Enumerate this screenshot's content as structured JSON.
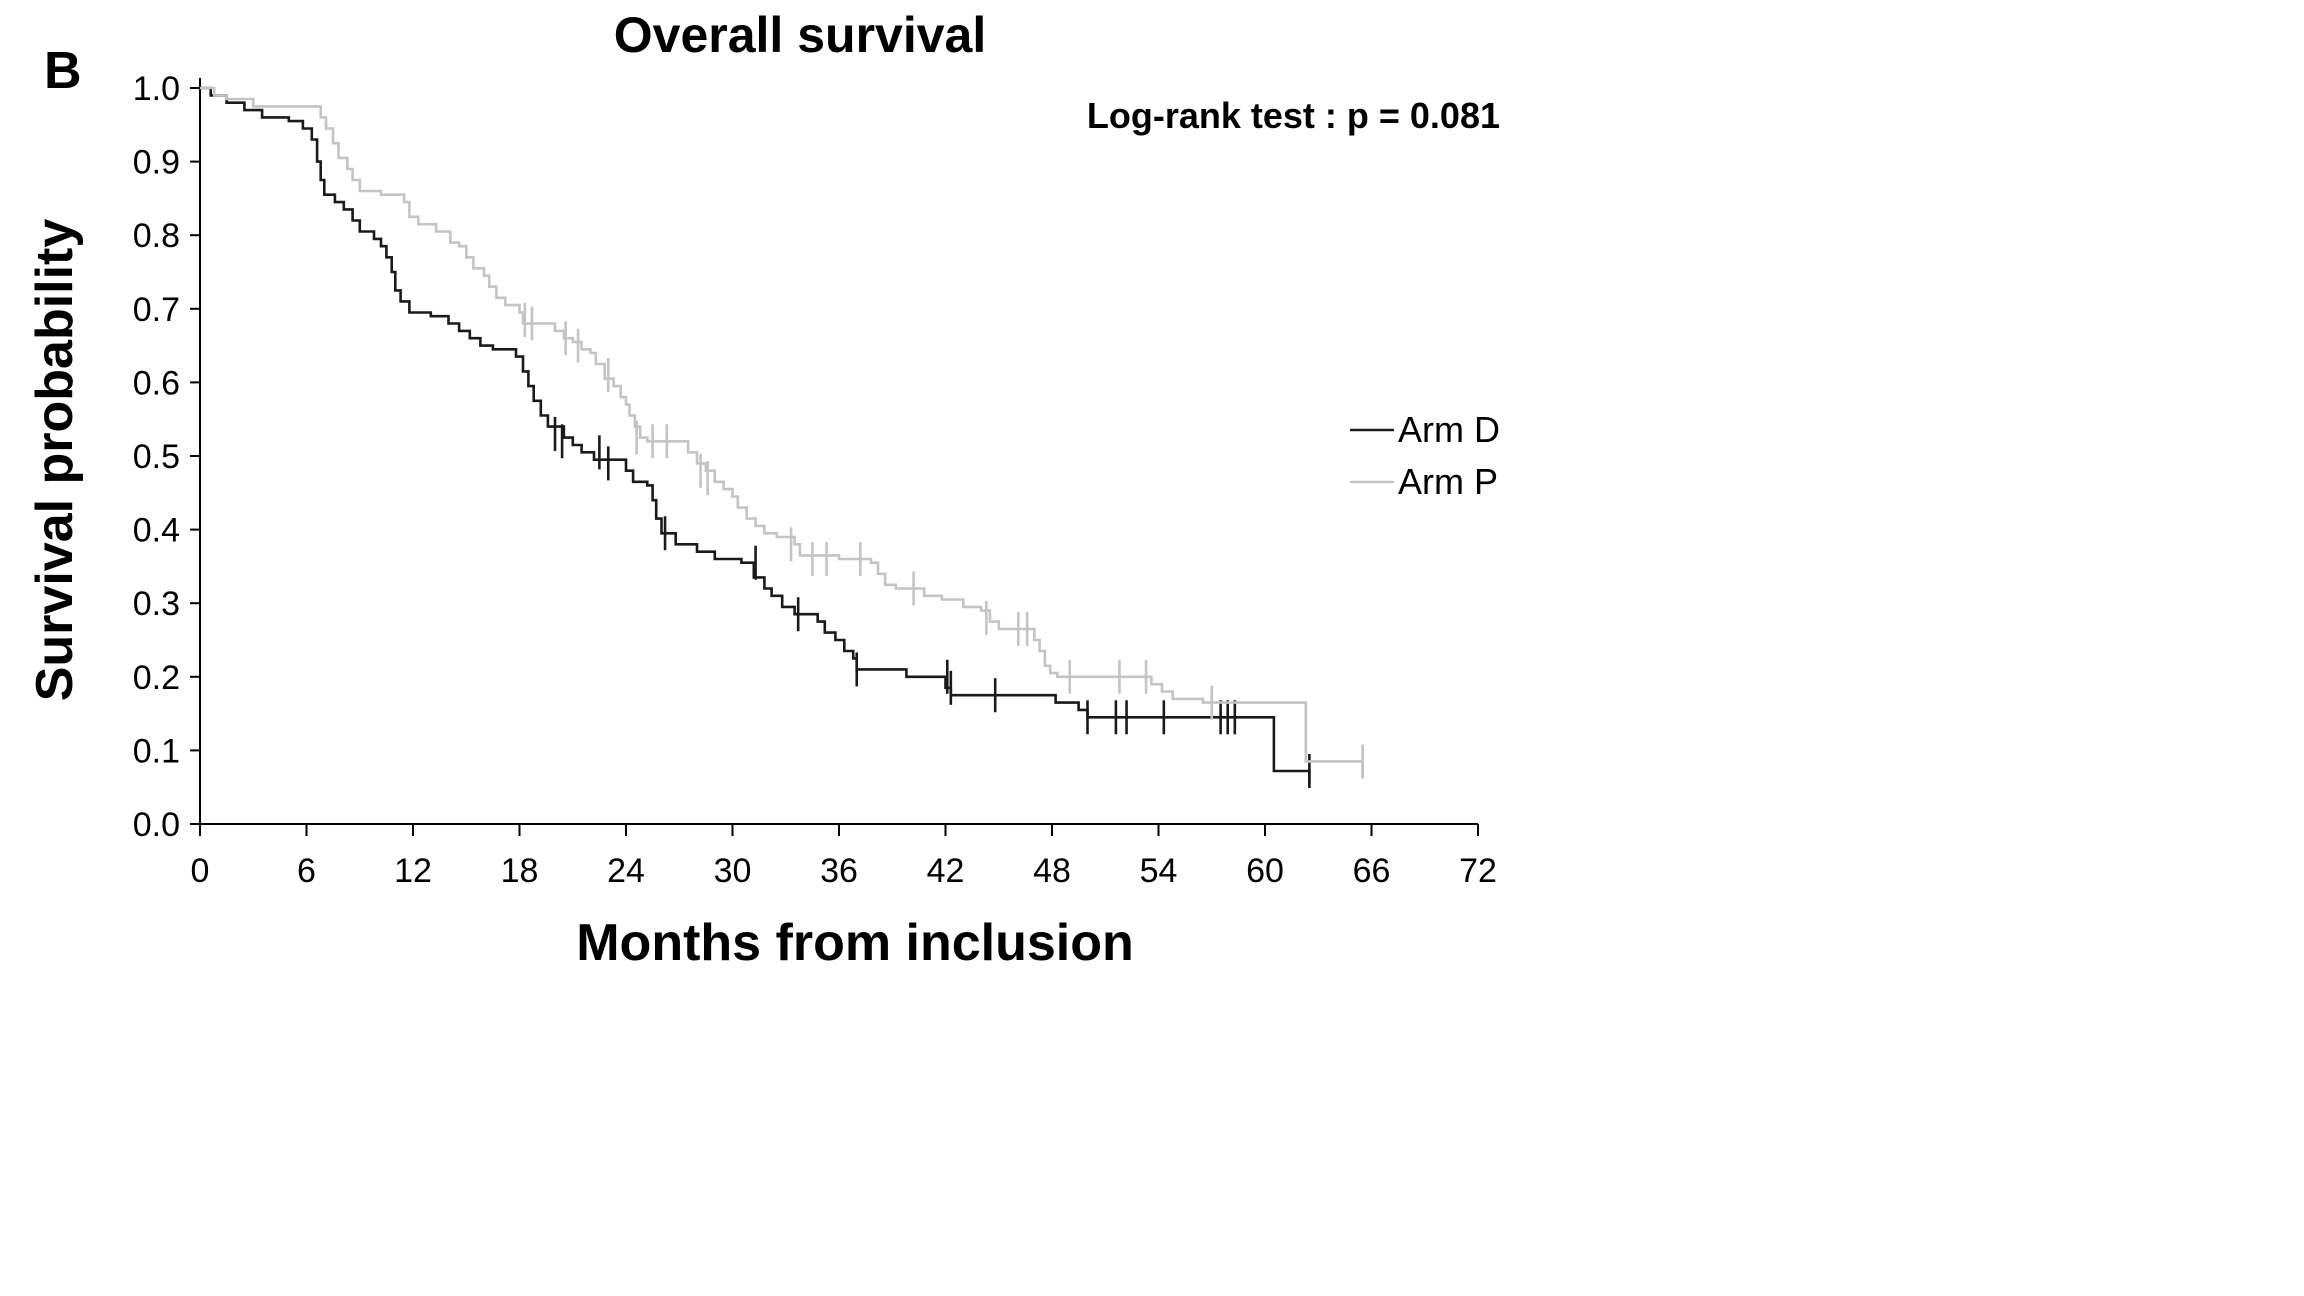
{
  "panel_label": "B",
  "chart_data": {
    "type": "line",
    "subtype": "kaplan-meier",
    "title": "Overall survival",
    "xlabel": "Months from inclusion",
    "ylabel": "Survival probability",
    "xlim": [
      0,
      72
    ],
    "ylim": [
      0,
      1
    ],
    "x_ticks": [
      0,
      6,
      12,
      18,
      24,
      30,
      36,
      42,
      48,
      54,
      60,
      66,
      72
    ],
    "y_ticks": [
      "0.0",
      "0.1",
      "0.2",
      "0.3",
      "0.4",
      "0.5",
      "0.6",
      "0.7",
      "0.8",
      "0.9",
      "1.0"
    ],
    "annotation": "Log-rank test : p = 0.081",
    "grid": false,
    "legend_position": "right",
    "series": [
      {
        "name": "Arm D",
        "color": "#1a1a1a",
        "points": [
          [
            0,
            1.0
          ],
          [
            0.6,
            0.99
          ],
          [
            1.5,
            0.98
          ],
          [
            2.5,
            0.97
          ],
          [
            3.5,
            0.96
          ],
          [
            5,
            0.955
          ],
          [
            5.8,
            0.945
          ],
          [
            6.3,
            0.93
          ],
          [
            6.6,
            0.9
          ],
          [
            6.8,
            0.875
          ],
          [
            7.0,
            0.855
          ],
          [
            7.6,
            0.845
          ],
          [
            8.1,
            0.835
          ],
          [
            8.6,
            0.82
          ],
          [
            9.0,
            0.805
          ],
          [
            9.8,
            0.795
          ],
          [
            10.2,
            0.785
          ],
          [
            10.5,
            0.77
          ],
          [
            10.8,
            0.75
          ],
          [
            11.0,
            0.725
          ],
          [
            11.3,
            0.71
          ],
          [
            11.8,
            0.695
          ],
          [
            13,
            0.69
          ],
          [
            14,
            0.68
          ],
          [
            14.6,
            0.67
          ],
          [
            15.2,
            0.66
          ],
          [
            15.8,
            0.65
          ],
          [
            16.5,
            0.645
          ],
          [
            17.8,
            0.635
          ],
          [
            18.2,
            0.615
          ],
          [
            18.5,
            0.595
          ],
          [
            18.8,
            0.575
          ],
          [
            19.2,
            0.555
          ],
          [
            19.6,
            0.54
          ],
          [
            20.5,
            0.525
          ],
          [
            21.0,
            0.515
          ],
          [
            21.5,
            0.505
          ],
          [
            22.2,
            0.495
          ],
          [
            24.0,
            0.48
          ],
          [
            24.4,
            0.465
          ],
          [
            25.2,
            0.46
          ],
          [
            25.5,
            0.44
          ],
          [
            25.7,
            0.415
          ],
          [
            26.0,
            0.395
          ],
          [
            26.8,
            0.38
          ],
          [
            28.0,
            0.37
          ],
          [
            29.0,
            0.36
          ],
          [
            30.5,
            0.355
          ],
          [
            31.2,
            0.335
          ],
          [
            31.8,
            0.32
          ],
          [
            32.2,
            0.31
          ],
          [
            32.8,
            0.295
          ],
          [
            33.5,
            0.285
          ],
          [
            34.8,
            0.275
          ],
          [
            35.2,
            0.26
          ],
          [
            35.8,
            0.25
          ],
          [
            36.3,
            0.235
          ],
          [
            36.8,
            0.225
          ],
          [
            37.0,
            0.21
          ],
          [
            39,
            0.21
          ],
          [
            39.8,
            0.2
          ],
          [
            41.5,
            0.2
          ],
          [
            42.0,
            0.185
          ],
          [
            42.3,
            0.175
          ],
          [
            48.2,
            0.165
          ],
          [
            49.5,
            0.155
          ],
          [
            50.0,
            0.145
          ],
          [
            60.5,
            0.145
          ],
          [
            60.5,
            0.072
          ],
          [
            62.5,
            0.072
          ],
          [
            62.5,
            0.055
          ]
        ],
        "censored": [
          [
            20.0,
            0.53
          ],
          [
            20.4,
            0.52
          ],
          [
            22.5,
            0.505
          ],
          [
            23.0,
            0.49
          ],
          [
            26.2,
            0.395
          ],
          [
            31.3,
            0.355
          ],
          [
            33.7,
            0.285
          ],
          [
            37.0,
            0.21
          ],
          [
            42.1,
            0.2
          ],
          [
            42.3,
            0.185
          ],
          [
            44.8,
            0.175
          ],
          [
            50.0,
            0.145
          ],
          [
            51.6,
            0.145
          ],
          [
            52.2,
            0.145
          ],
          [
            54.3,
            0.145
          ],
          [
            57.5,
            0.145
          ],
          [
            57.9,
            0.145
          ],
          [
            58.3,
            0.145
          ],
          [
            62.5,
            0.072
          ]
        ]
      },
      {
        "name": "Arm P",
        "color": "#c4c4c4",
        "points": [
          [
            0,
            1.0
          ],
          [
            0.8,
            0.99
          ],
          [
            1.5,
            0.985
          ],
          [
            3.0,
            0.975
          ],
          [
            6.2,
            0.975
          ],
          [
            6.8,
            0.96
          ],
          [
            7.1,
            0.945
          ],
          [
            7.5,
            0.925
          ],
          [
            7.8,
            0.905
          ],
          [
            8.3,
            0.89
          ],
          [
            8.6,
            0.875
          ],
          [
            9.0,
            0.86
          ],
          [
            10.2,
            0.855
          ],
          [
            11.5,
            0.845
          ],
          [
            11.8,
            0.825
          ],
          [
            12.3,
            0.815
          ],
          [
            13.3,
            0.805
          ],
          [
            14.1,
            0.79
          ],
          [
            14.6,
            0.785
          ],
          [
            15.0,
            0.77
          ],
          [
            15.4,
            0.755
          ],
          [
            16.0,
            0.745
          ],
          [
            16.3,
            0.73
          ],
          [
            16.7,
            0.715
          ],
          [
            17.2,
            0.705
          ],
          [
            18.0,
            0.695
          ],
          [
            18.2,
            0.68
          ],
          [
            19.5,
            0.68
          ],
          [
            20.0,
            0.67
          ],
          [
            20.5,
            0.66
          ],
          [
            21.0,
            0.655
          ],
          [
            21.5,
            0.645
          ],
          [
            22.0,
            0.64
          ],
          [
            22.3,
            0.625
          ],
          [
            22.8,
            0.605
          ],
          [
            23.3,
            0.595
          ],
          [
            23.7,
            0.58
          ],
          [
            24.0,
            0.57
          ],
          [
            24.2,
            0.555
          ],
          [
            24.5,
            0.54
          ],
          [
            24.8,
            0.525
          ],
          [
            25.2,
            0.52
          ],
          [
            27.0,
            0.52
          ],
          [
            27.5,
            0.505
          ],
          [
            28.0,
            0.49
          ],
          [
            28.5,
            0.48
          ],
          [
            29.0,
            0.465
          ],
          [
            29.5,
            0.455
          ],
          [
            30.0,
            0.445
          ],
          [
            30.3,
            0.43
          ],
          [
            30.8,
            0.415
          ],
          [
            31.3,
            0.405
          ],
          [
            31.8,
            0.395
          ],
          [
            32.5,
            0.39
          ],
          [
            33.5,
            0.38
          ],
          [
            33.8,
            0.365
          ],
          [
            36.0,
            0.36
          ],
          [
            37.8,
            0.355
          ],
          [
            38.2,
            0.34
          ],
          [
            38.6,
            0.325
          ],
          [
            39.2,
            0.32
          ],
          [
            40.2,
            0.32
          ],
          [
            40.8,
            0.31
          ],
          [
            41.8,
            0.305
          ],
          [
            43.0,
            0.295
          ],
          [
            44.0,
            0.29
          ],
          [
            44.5,
            0.275
          ],
          [
            45.0,
            0.265
          ],
          [
            46.5,
            0.265
          ],
          [
            47.0,
            0.25
          ],
          [
            47.3,
            0.235
          ],
          [
            47.6,
            0.215
          ],
          [
            47.9,
            0.205
          ],
          [
            48.3,
            0.2
          ],
          [
            53.0,
            0.2
          ],
          [
            53.6,
            0.19
          ],
          [
            54.2,
            0.18
          ],
          [
            54.8,
            0.17
          ],
          [
            56.0,
            0.17
          ],
          [
            56.5,
            0.165
          ],
          [
            62.3,
            0.165
          ],
          [
            62.3,
            0.085
          ],
          [
            65.5,
            0.085
          ],
          [
            65.5,
            0.062
          ]
        ],
        "censored": [
          [
            18.3,
            0.685
          ],
          [
            18.7,
            0.68
          ],
          [
            20.6,
            0.66
          ],
          [
            21.3,
            0.65
          ],
          [
            23.0,
            0.61
          ],
          [
            24.6,
            0.525
          ],
          [
            25.5,
            0.52
          ],
          [
            26.3,
            0.52
          ],
          [
            28.2,
            0.48
          ],
          [
            28.6,
            0.47
          ],
          [
            33.3,
            0.38
          ],
          [
            34.5,
            0.36
          ],
          [
            35.3,
            0.36
          ],
          [
            37.2,
            0.36
          ],
          [
            40.2,
            0.32
          ],
          [
            44.3,
            0.28
          ],
          [
            46.1,
            0.265
          ],
          [
            46.6,
            0.265
          ],
          [
            49.0,
            0.2
          ],
          [
            51.8,
            0.2
          ],
          [
            53.3,
            0.2
          ],
          [
            57.0,
            0.165
          ],
          [
            65.5,
            0.085
          ]
        ]
      }
    ]
  }
}
